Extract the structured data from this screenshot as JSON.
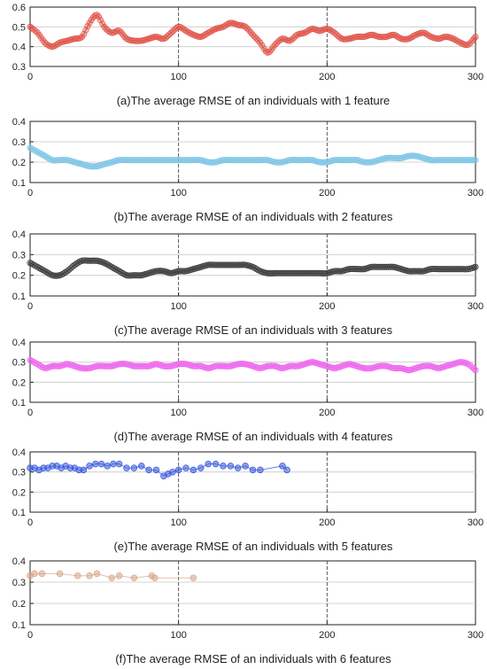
{
  "chart_data": [
    {
      "type": "scatter",
      "caption": "(a)The average RMSE of an individuals with 1 feature",
      "xlim": [
        0,
        300
      ],
      "ylim": [
        0.3,
        0.6
      ],
      "xticks": [
        "0",
        "100",
        "200",
        "300"
      ],
      "yticks": [
        "0.3",
        "0.4",
        "0.5",
        "0.6"
      ],
      "grid": true,
      "series": [
        {
          "color": "#e0554a",
          "marker": "dense",
          "connected": true,
          "x": [
            0,
            5,
            10,
            15,
            20,
            25,
            30,
            35,
            40,
            45,
            50,
            55,
            60,
            65,
            70,
            75,
            80,
            85,
            90,
            95,
            100,
            105,
            110,
            115,
            120,
            125,
            130,
            135,
            140,
            145,
            150,
            155,
            160,
            165,
            170,
            175,
            180,
            185,
            190,
            195,
            200,
            205,
            210,
            215,
            220,
            225,
            230,
            235,
            240,
            245,
            250,
            255,
            260,
            265,
            270,
            275,
            280,
            285,
            290,
            295,
            300
          ],
          "y": [
            0.5,
            0.47,
            0.42,
            0.4,
            0.42,
            0.43,
            0.44,
            0.45,
            0.52,
            0.56,
            0.5,
            0.47,
            0.48,
            0.44,
            0.43,
            0.43,
            0.44,
            0.45,
            0.44,
            0.47,
            0.5,
            0.48,
            0.46,
            0.45,
            0.47,
            0.49,
            0.5,
            0.52,
            0.51,
            0.5,
            0.46,
            0.42,
            0.37,
            0.41,
            0.44,
            0.43,
            0.46,
            0.47,
            0.49,
            0.48,
            0.49,
            0.47,
            0.44,
            0.44,
            0.45,
            0.45,
            0.46,
            0.45,
            0.45,
            0.46,
            0.44,
            0.44,
            0.46,
            0.47,
            0.45,
            0.44,
            0.45,
            0.44,
            0.42,
            0.41,
            0.45
          ]
        }
      ]
    },
    {
      "type": "scatter",
      "caption": "(b)The average RMSE of an individuals with 2 features",
      "xlim": [
        0,
        300
      ],
      "ylim": [
        0.1,
        0.4
      ],
      "xticks": [
        "0",
        "100",
        "200",
        "300"
      ],
      "yticks": [
        "0.1",
        "0.2",
        "0.3",
        "0.4"
      ],
      "grid": true,
      "series": [
        {
          "color": "#7fc6e6",
          "marker": "dense",
          "connected": true,
          "x": [
            0,
            5,
            10,
            15,
            20,
            25,
            30,
            35,
            40,
            45,
            50,
            55,
            60,
            65,
            70,
            75,
            80,
            85,
            90,
            95,
            100,
            105,
            110,
            115,
            120,
            125,
            130,
            135,
            140,
            145,
            150,
            155,
            160,
            165,
            170,
            175,
            180,
            185,
            190,
            195,
            200,
            205,
            210,
            215,
            220,
            225,
            230,
            235,
            240,
            245,
            250,
            255,
            260,
            265,
            270,
            275,
            280,
            285,
            290,
            295,
            300
          ],
          "y": [
            0.27,
            0.25,
            0.23,
            0.21,
            0.21,
            0.21,
            0.2,
            0.19,
            0.18,
            0.18,
            0.19,
            0.2,
            0.21,
            0.21,
            0.21,
            0.21,
            0.21,
            0.21,
            0.21,
            0.21,
            0.21,
            0.21,
            0.21,
            0.21,
            0.2,
            0.2,
            0.21,
            0.21,
            0.21,
            0.21,
            0.21,
            0.21,
            0.21,
            0.2,
            0.2,
            0.21,
            0.21,
            0.21,
            0.21,
            0.2,
            0.2,
            0.21,
            0.21,
            0.21,
            0.21,
            0.2,
            0.2,
            0.21,
            0.22,
            0.22,
            0.22,
            0.23,
            0.23,
            0.22,
            0.21,
            0.21,
            0.21,
            0.21,
            0.21,
            0.21,
            0.21
          ]
        }
      ]
    },
    {
      "type": "scatter",
      "caption": "(c)The average RMSE of an individuals with 3 features",
      "xlim": [
        0,
        300
      ],
      "ylim": [
        0.1,
        0.4
      ],
      "xticks": [
        "0",
        "100",
        "200",
        "300"
      ],
      "yticks": [
        "0.1",
        "0.2",
        "0.3",
        "0.4"
      ],
      "grid": true,
      "series": [
        {
          "color": "#3d3d3d",
          "marker": "dense",
          "connected": true,
          "x": [
            0,
            5,
            10,
            15,
            20,
            25,
            30,
            35,
            40,
            45,
            50,
            55,
            60,
            65,
            70,
            75,
            80,
            85,
            90,
            95,
            100,
            105,
            110,
            115,
            120,
            125,
            130,
            135,
            140,
            145,
            150,
            155,
            160,
            165,
            170,
            175,
            180,
            185,
            190,
            195,
            200,
            205,
            210,
            215,
            220,
            225,
            230,
            235,
            240,
            245,
            250,
            255,
            260,
            265,
            270,
            275,
            280,
            285,
            290,
            295,
            300
          ],
          "y": [
            0.26,
            0.24,
            0.22,
            0.2,
            0.2,
            0.22,
            0.25,
            0.27,
            0.27,
            0.27,
            0.26,
            0.24,
            0.22,
            0.2,
            0.2,
            0.2,
            0.21,
            0.22,
            0.22,
            0.21,
            0.22,
            0.22,
            0.23,
            0.24,
            0.25,
            0.25,
            0.25,
            0.25,
            0.25,
            0.25,
            0.24,
            0.22,
            0.21,
            0.21,
            0.21,
            0.21,
            0.21,
            0.21,
            0.21,
            0.21,
            0.21,
            0.22,
            0.22,
            0.23,
            0.23,
            0.23,
            0.24,
            0.24,
            0.24,
            0.24,
            0.23,
            0.22,
            0.22,
            0.22,
            0.23,
            0.23,
            0.23,
            0.23,
            0.23,
            0.23,
            0.24
          ]
        }
      ]
    },
    {
      "type": "scatter",
      "caption": "(d)The average RMSE of an individuals with 4 features",
      "xlim": [
        0,
        300
      ],
      "ylim": [
        0.1,
        0.4
      ],
      "xticks": [
        "0",
        "100",
        "200",
        "300"
      ],
      "yticks": [
        "0.1",
        "0.2",
        "0.3",
        "0.4"
      ],
      "grid": true,
      "series": [
        {
          "color": "#ee66ee",
          "marker": "dense",
          "connected": true,
          "x": [
            0,
            5,
            10,
            15,
            20,
            25,
            30,
            35,
            40,
            45,
            50,
            55,
            60,
            65,
            70,
            75,
            80,
            85,
            90,
            95,
            100,
            105,
            110,
            115,
            120,
            125,
            130,
            135,
            140,
            145,
            150,
            155,
            160,
            165,
            170,
            175,
            180,
            185,
            190,
            195,
            200,
            205,
            210,
            215,
            220,
            225,
            230,
            235,
            240,
            245,
            250,
            255,
            260,
            265,
            270,
            275,
            280,
            285,
            290,
            295,
            300
          ],
          "y": [
            0.31,
            0.29,
            0.27,
            0.28,
            0.28,
            0.29,
            0.28,
            0.27,
            0.27,
            0.28,
            0.28,
            0.28,
            0.29,
            0.29,
            0.28,
            0.28,
            0.28,
            0.29,
            0.28,
            0.28,
            0.29,
            0.29,
            0.28,
            0.28,
            0.27,
            0.28,
            0.28,
            0.28,
            0.29,
            0.29,
            0.28,
            0.27,
            0.28,
            0.28,
            0.27,
            0.28,
            0.28,
            0.29,
            0.3,
            0.29,
            0.28,
            0.27,
            0.28,
            0.29,
            0.28,
            0.27,
            0.27,
            0.28,
            0.28,
            0.27,
            0.27,
            0.26,
            0.27,
            0.28,
            0.28,
            0.27,
            0.28,
            0.29,
            0.3,
            0.29,
            0.26
          ]
        }
      ]
    },
    {
      "type": "scatter",
      "caption": "(e)The average RMSE of an individuals with 5 features",
      "xlim": [
        0,
        300
      ],
      "ylim": [
        0.1,
        0.4
      ],
      "xticks": [
        "0",
        "100",
        "200",
        "300"
      ],
      "yticks": [
        "0.1",
        "0.2",
        "0.3",
        "0.4"
      ],
      "grid": true,
      "series": [
        {
          "color": "#3355dd",
          "marker": "sparse",
          "connected": true,
          "x": [
            0,
            3,
            6,
            9,
            12,
            15,
            18,
            21,
            24,
            27,
            30,
            33,
            36,
            40,
            44,
            48,
            52,
            56,
            60,
            65,
            70,
            75,
            80,
            85,
            90,
            93,
            96,
            100,
            105,
            110,
            115,
            120,
            125,
            130,
            135,
            140,
            145,
            150,
            155,
            170,
            173
          ],
          "y": [
            0.32,
            0.32,
            0.31,
            0.32,
            0.32,
            0.33,
            0.33,
            0.32,
            0.33,
            0.32,
            0.32,
            0.31,
            0.31,
            0.33,
            0.34,
            0.34,
            0.33,
            0.34,
            0.34,
            0.32,
            0.32,
            0.33,
            0.31,
            0.31,
            0.28,
            0.29,
            0.3,
            0.31,
            0.32,
            0.31,
            0.32,
            0.34,
            0.34,
            0.33,
            0.33,
            0.32,
            0.33,
            0.31,
            0.31,
            0.33,
            0.31
          ]
        }
      ]
    },
    {
      "type": "scatter",
      "caption": "(f)The average RMSE of an individuals with 6 features",
      "xlim": [
        0,
        300
      ],
      "ylim": [
        0.1,
        0.4
      ],
      "xticks": [
        "0",
        "100",
        "200",
        "300"
      ],
      "yticks": [
        "0.1",
        "0.2",
        "0.3",
        "0.4"
      ],
      "grid": true,
      "series": [
        {
          "color": "#d8a48a",
          "marker": "sparse",
          "connected": true,
          "x": [
            0,
            3,
            8,
            20,
            32,
            40,
            45,
            55,
            60,
            70,
            82,
            84,
            110
          ],
          "y": [
            0.33,
            0.34,
            0.34,
            0.34,
            0.33,
            0.33,
            0.34,
            0.32,
            0.33,
            0.32,
            0.33,
            0.32,
            0.32
          ]
        }
      ]
    }
  ]
}
